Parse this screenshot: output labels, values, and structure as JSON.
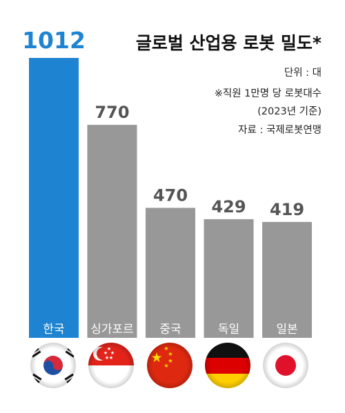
{
  "title": "글로벌 산업용 로봇 밀도*",
  "notes": [
    "단위 : 대",
    "※직원 1만명 당 로봇대수",
    "(2023년 기준)",
    "자료 : 국제로봇연맹"
  ],
  "colors": {
    "highlight": "#1e83d0",
    "bar": "#989898",
    "value_text": "#555555"
  },
  "chart_data": {
    "type": "bar",
    "title": "글로벌 산업용 로봇 밀도*",
    "categories": [
      "한국",
      "싱가포르",
      "중국",
      "독일",
      "일본"
    ],
    "values": [
      1012,
      770,
      470,
      429,
      419
    ],
    "value_labels": [
      "1012",
      "770",
      "470",
      "429",
      "419"
    ],
    "flags": [
      "south-korea-flag-icon",
      "singapore-flag-icon",
      "china-flag-icon",
      "germany-flag-icon",
      "japan-flag-icon"
    ],
    "highlight_index": 0,
    "ylim": [
      0,
      1012
    ],
    "grid": false,
    "legend": "none"
  }
}
